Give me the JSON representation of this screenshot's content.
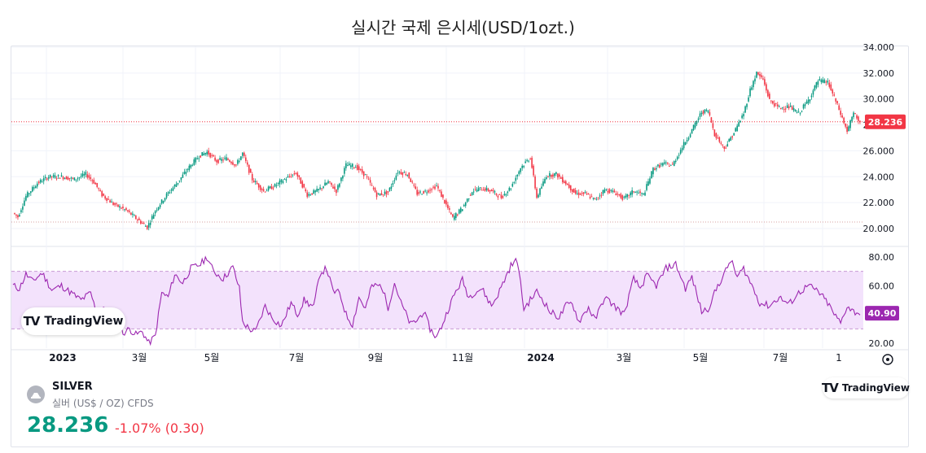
{
  "title": "실시간 국제 은시세(USD/1ozt.)",
  "symbol": {
    "name": "SILVER",
    "description": "실버 (US$ / OZ) CFDS",
    "price": "28.236",
    "change": "-1.07% (0.30)",
    "icon": "silver-icon"
  },
  "brand": {
    "name": "TradingView",
    "logo": "TV"
  },
  "colors": {
    "up": "#089981",
    "down": "#f23645",
    "rsi": "#9c27b0",
    "rsi_band": "#f3e2fc",
    "price_tag": "#f23645",
    "rsi_tag": "#9c27b0"
  },
  "chart_data": [
    {
      "type": "candlestick",
      "title": "",
      "x_ticks": [
        "2023",
        "3월",
        "5월",
        "7월",
        "9월",
        "11월",
        "2024",
        "3월",
        "5월",
        "7월",
        "1"
      ],
      "y_ticks": [
        "34.000",
        "32.000",
        "30.000",
        "28.000",
        "26.000",
        "24.000",
        "22.000",
        "20.000"
      ],
      "ylim": [
        19.5,
        34.2
      ],
      "last_price_label": "28.236",
      "last_price": 28.236,
      "dotted_level": 20.5,
      "close_series_anchors": [
        [
          0,
          21.2
        ],
        [
          3,
          20.9
        ],
        [
          8,
          22.5
        ],
        [
          15,
          23.5
        ],
        [
          22,
          24.0
        ],
        [
          30,
          24.0
        ],
        [
          38,
          23.8
        ],
        [
          45,
          24.2
        ],
        [
          50,
          23.6
        ],
        [
          55,
          22.6
        ],
        [
          62,
          21.9
        ],
        [
          70,
          21.4
        ],
        [
          78,
          20.6
        ],
        [
          83,
          20.1
        ],
        [
          88,
          21.4
        ],
        [
          95,
          22.6
        ],
        [
          102,
          23.6
        ],
        [
          108,
          24.6
        ],
        [
          115,
          25.6
        ],
        [
          120,
          25.9
        ],
        [
          126,
          25.2
        ],
        [
          132,
          25.4
        ],
        [
          138,
          24.9
        ],
        [
          142,
          25.8
        ],
        [
          148,
          23.8
        ],
        [
          155,
          22.9
        ],
        [
          162,
          23.3
        ],
        [
          168,
          23.8
        ],
        [
          175,
          24.3
        ],
        [
          182,
          22.6
        ],
        [
          188,
          22.9
        ],
        [
          195,
          23.6
        ],
        [
          200,
          22.9
        ],
        [
          206,
          24.9
        ],
        [
          212,
          24.8
        ],
        [
          218,
          24.1
        ],
        [
          225,
          22.6
        ],
        [
          232,
          22.8
        ],
        [
          238,
          24.4
        ],
        [
          244,
          24.2
        ],
        [
          250,
          22.7
        ],
        [
          256,
          22.9
        ],
        [
          262,
          23.3
        ],
        [
          268,
          21.8
        ],
        [
          272,
          20.8
        ],
        [
          278,
          21.6
        ],
        [
          284,
          22.9
        ],
        [
          290,
          23.1
        ],
        [
          296,
          22.9
        ],
        [
          302,
          22.4
        ],
        [
          308,
          23.2
        ],
        [
          314,
          24.7
        ],
        [
          320,
          25.5
        ],
        [
          324,
          22.4
        ],
        [
          330,
          24.1
        ],
        [
          336,
          24.2
        ],
        [
          342,
          23.5
        ],
        [
          348,
          22.7
        ],
        [
          354,
          22.7
        ],
        [
          360,
          22.2
        ],
        [
          366,
          23.0
        ],
        [
          372,
          22.8
        ],
        [
          378,
          22.3
        ],
        [
          384,
          22.9
        ],
        [
          390,
          22.6
        ],
        [
          396,
          24.6
        ],
        [
          402,
          25.0
        ],
        [
          408,
          24.9
        ],
        [
          414,
          26.3
        ],
        [
          420,
          27.6
        ],
        [
          426,
          29.0
        ],
        [
          430,
          29.1
        ],
        [
          434,
          27.3
        ],
        [
          440,
          26.2
        ],
        [
          446,
          27.4
        ],
        [
          452,
          28.9
        ],
        [
          456,
          30.7
        ],
        [
          460,
          32.0
        ],
        [
          464,
          31.5
        ],
        [
          468,
          29.9
        ],
        [
          474,
          29.3
        ],
        [
          480,
          29.4
        ],
        [
          486,
          28.9
        ],
        [
          492,
          29.9
        ],
        [
          498,
          31.4
        ],
        [
          504,
          31.3
        ],
        [
          510,
          29.5
        ],
        [
          516,
          27.5
        ],
        [
          520,
          28.9
        ],
        [
          524,
          28.236
        ]
      ]
    },
    {
      "type": "line",
      "title": "",
      "y_ticks": [
        "80.00",
        "60.00",
        "20.00"
      ],
      "ylim": [
        18,
        85
      ],
      "band": [
        30,
        70
      ],
      "last_value_label": "40.90",
      "last_value": 40.9,
      "anchors": [
        [
          0,
          60
        ],
        [
          4,
          58
        ],
        [
          8,
          68
        ],
        [
          12,
          63
        ],
        [
          18,
          69
        ],
        [
          24,
          57
        ],
        [
          30,
          60
        ],
        [
          36,
          55
        ],
        [
          42,
          50
        ],
        [
          48,
          55
        ],
        [
          52,
          40
        ],
        [
          56,
          45
        ],
        [
          60,
          35
        ],
        [
          64,
          40
        ],
        [
          68,
          27
        ],
        [
          72,
          30
        ],
        [
          76,
          26
        ],
        [
          80,
          28
        ],
        [
          84,
          20
        ],
        [
          88,
          25
        ],
        [
          92,
          55
        ],
        [
          96,
          52
        ],
        [
          100,
          68
        ],
        [
          105,
          62
        ],
        [
          110,
          72
        ],
        [
          116,
          75
        ],
        [
          120,
          80
        ],
        [
          124,
          70
        ],
        [
          130,
          65
        ],
        [
          136,
          73
        ],
        [
          140,
          58
        ],
        [
          142,
          35
        ],
        [
          146,
          30
        ],
        [
          150,
          28
        ],
        [
          156,
          46
        ],
        [
          160,
          38
        ],
        [
          166,
          32
        ],
        [
          172,
          48
        ],
        [
          176,
          40
        ],
        [
          180,
          50
        ],
        [
          186,
          45
        ],
        [
          190,
          69
        ],
        [
          194,
          72
        ],
        [
          198,
          56
        ],
        [
          202,
          55
        ],
        [
          206,
          40
        ],
        [
          210,
          33
        ],
        [
          214,
          52
        ],
        [
          218,
          44
        ],
        [
          222,
          60
        ],
        [
          228,
          60
        ],
        [
          232,
          45
        ],
        [
          236,
          62
        ],
        [
          240,
          48
        ],
        [
          246,
          33
        ],
        [
          250,
          36
        ],
        [
          254,
          42
        ],
        [
          258,
          30
        ],
        [
          262,
          24
        ],
        [
          266,
          34
        ],
        [
          270,
          46
        ],
        [
          274,
          56
        ],
        [
          278,
          64
        ],
        [
          282,
          52
        ],
        [
          286,
          56
        ],
        [
          290,
          58
        ],
        [
          296,
          46
        ],
        [
          300,
          54
        ],
        [
          304,
          64
        ],
        [
          308,
          74
        ],
        [
          312,
          78
        ],
        [
          316,
          44
        ],
        [
          320,
          50
        ],
        [
          324,
          56
        ],
        [
          328,
          50
        ],
        [
          332,
          42
        ],
        [
          338,
          38
        ],
        [
          342,
          46
        ],
        [
          346,
          48
        ],
        [
          350,
          35
        ],
        [
          356,
          45
        ],
        [
          360,
          36
        ],
        [
          366,
          52
        ],
        [
          372,
          46
        ],
        [
          378,
          40
        ],
        [
          384,
          65
        ],
        [
          388,
          58
        ],
        [
          392,
          67
        ],
        [
          398,
          60
        ],
        [
          404,
          72
        ],
        [
          410,
          75
        ],
        [
          416,
          58
        ],
        [
          420,
          66
        ],
        [
          426,
          42
        ],
        [
          430,
          44
        ],
        [
          436,
          60
        ],
        [
          440,
          68
        ],
        [
          444,
          78
        ],
        [
          448,
          66
        ],
        [
          452,
          72
        ],
        [
          458,
          58
        ],
        [
          462,
          48
        ],
        [
          468,
          46
        ],
        [
          474,
          52
        ],
        [
          480,
          47
        ],
        [
          486,
          55
        ],
        [
          492,
          60
        ],
        [
          498,
          56
        ],
        [
          504,
          48
        ],
        [
          508,
          40
        ],
        [
          512,
          34
        ],
        [
          516,
          46
        ],
        [
          520,
          42
        ],
        [
          524,
          40.9
        ]
      ]
    }
  ]
}
